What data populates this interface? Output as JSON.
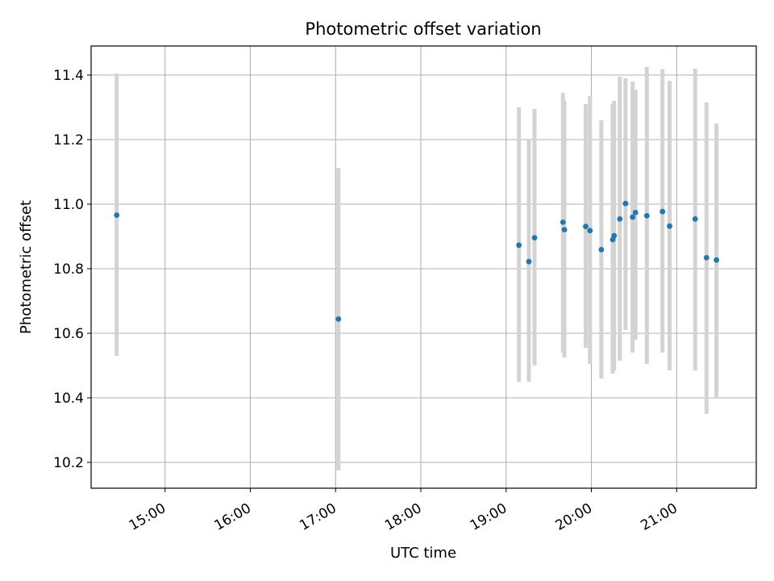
{
  "chart_data": {
    "type": "scatter",
    "title": "Photometric offset variation",
    "xlabel": "UTC time",
    "ylabel": "Photometric offset",
    "xlim": [
      "14:08",
      "21:56"
    ],
    "ylim": [
      10.12,
      11.49
    ],
    "x_ticks": [
      "15:00",
      "16:00",
      "17:00",
      "18:00",
      "19:00",
      "20:00",
      "21:00"
    ],
    "y_ticks": [
      "10.2",
      "10.4",
      "10.6",
      "10.8",
      "11.0",
      "11.2",
      "11.4"
    ],
    "grid": true,
    "series": [
      {
        "marker": "dot",
        "marker_color": "#1f77b4",
        "errorbar_color": "#d3d3d3",
        "points": [
          {
            "x": "14:26",
            "y": 10.966,
            "ylow": 10.53,
            "yhigh": 11.405
          },
          {
            "x": "17:02",
            "y": 10.644,
            "ylow": 10.175,
            "yhigh": 11.112
          },
          {
            "x": "19:09",
            "y": 10.873,
            "ylow": 10.45,
            "yhigh": 11.3
          },
          {
            "x": "19:16",
            "y": 10.822,
            "ylow": 10.45,
            "yhigh": 11.2
          },
          {
            "x": "19:20",
            "y": 10.896,
            "ylow": 10.5,
            "yhigh": 11.295
          },
          {
            "x": "19:40",
            "y": 10.944,
            "ylow": 10.54,
            "yhigh": 11.345
          },
          {
            "x": "19:41",
            "y": 10.921,
            "ylow": 10.525,
            "yhigh": 11.32
          },
          {
            "x": "19:56",
            "y": 10.931,
            "ylow": 10.555,
            "yhigh": 11.31
          },
          {
            "x": "19:59",
            "y": 10.918,
            "ylow": 10.505,
            "yhigh": 11.335
          },
          {
            "x": "20:07",
            "y": 10.859,
            "ylow": 10.46,
            "yhigh": 11.26
          },
          {
            "x": "20:15",
            "y": 10.89,
            "ylow": 10.475,
            "yhigh": 11.31
          },
          {
            "x": "20:16",
            "y": 10.902,
            "ylow": 10.485,
            "yhigh": 11.32
          },
          {
            "x": "20:20",
            "y": 10.954,
            "ylow": 10.515,
            "yhigh": 11.395
          },
          {
            "x": "20:24",
            "y": 11.002,
            "ylow": 10.61,
            "yhigh": 11.39
          },
          {
            "x": "20:29",
            "y": 10.96,
            "ylow": 10.54,
            "yhigh": 11.38
          },
          {
            "x": "20:31",
            "y": 10.974,
            "ylow": 10.58,
            "yhigh": 11.355
          },
          {
            "x": "20:39",
            "y": 10.964,
            "ylow": 10.505,
            "yhigh": 11.425
          },
          {
            "x": "20:50",
            "y": 10.977,
            "ylow": 10.54,
            "yhigh": 11.418
          },
          {
            "x": "20:55",
            "y": 10.932,
            "ylow": 10.485,
            "yhigh": 11.382
          },
          {
            "x": "21:13",
            "y": 10.954,
            "ylow": 10.485,
            "yhigh": 11.42
          },
          {
            "x": "21:21",
            "y": 10.834,
            "ylow": 10.35,
            "yhigh": 11.315
          },
          {
            "x": "21:28",
            "y": 10.827,
            "ylow": 10.4,
            "yhigh": 11.25
          }
        ]
      }
    ]
  }
}
